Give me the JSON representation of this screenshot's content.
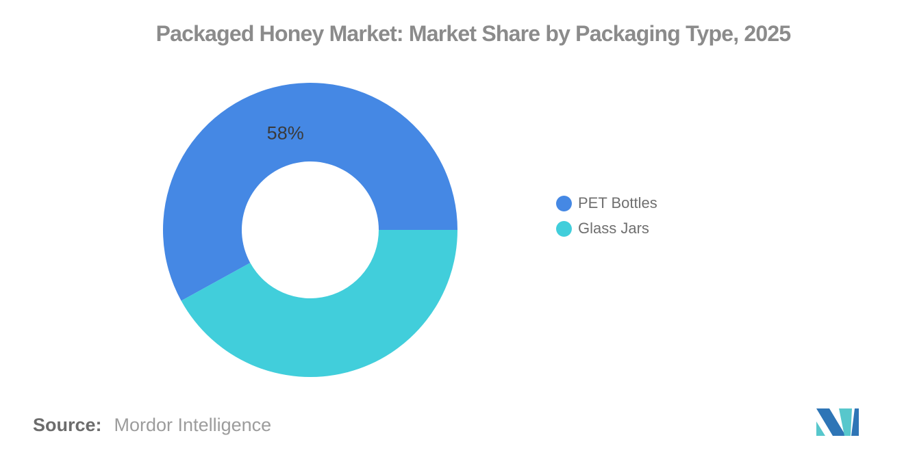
{
  "chart_data": {
    "type": "pie",
    "subtype": "donut",
    "title": "Packaged Honey Market: Market Share by Packaging Type, 2025",
    "units": "percent market share",
    "categories": [
      "PET Bottles",
      "Glass Jars"
    ],
    "values": [
      58,
      42
    ],
    "series": [
      {
        "name": "PET Bottles",
        "value": 58,
        "color": "#4588E4",
        "label": "58%"
      },
      {
        "name": "Glass Jars",
        "value": 42,
        "color": "#41CEDB",
        "label": ""
      }
    ],
    "start_angle_deg": 0,
    "direction": "counterclockwise",
    "inner_radius_ratio": 0.465,
    "legend_position": "right",
    "label_color": "#3A3A3A"
  },
  "footer": {
    "source_label": "Source:",
    "source_value": "Mordor Intelligence"
  },
  "logo": {
    "name": "mordor-intelligence-logo",
    "colors": {
      "blue": "#2E75B6",
      "teal": "#57C7CC"
    }
  },
  "colors": {
    "background": "#FFFFFF",
    "title_text": "#8B8B8B",
    "legend_text": "#6F6F6F",
    "source_label_text": "#6C6C6C",
    "source_value_text": "#9C9C9C"
  }
}
